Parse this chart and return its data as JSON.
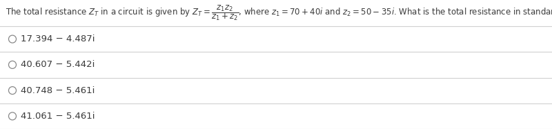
{
  "background_color": "#ffffff",
  "question_line1": "The total resistance $Z_T$ in a circuit is given by $Z_T = \\dfrac{z_1z_2}{z_1+z_2}$, where $z_1 = 70 + 40i$ and $z_2 = 50 - 35i$. What is the total resistance in standard form? Round to three decimal places.",
  "options": [
    "17.394 − 4.487i",
    "40.607 − 5.442i",
    "40.748 − 5.461i",
    "41.061 − 5.461i"
  ],
  "text_color": "#3a3a3a",
  "border_color": "#d0d0d0",
  "circle_color": "#888888",
  "font_size_question": 8.5,
  "font_size_options": 9.5,
  "fig_width": 8.0,
  "fig_height": 1.87,
  "dpi": 100
}
